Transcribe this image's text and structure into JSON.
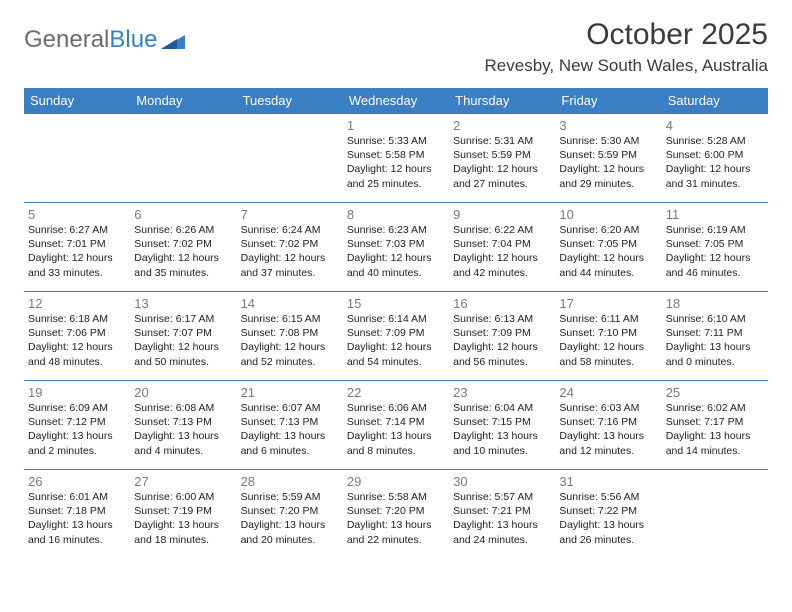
{
  "logo": {
    "part1": "General",
    "part2": "Blue"
  },
  "title": "October 2025",
  "location": "Revesby, New South Wales, Australia",
  "colors": {
    "header_bg": "#3a7fc4",
    "header_text": "#ffffff",
    "border": "#3a7fc4",
    "daynum": "#7a7a7a",
    "body_text": "#222222",
    "logo_gray": "#6c6c6c",
    "logo_blue": "#3a7fc4"
  },
  "days": [
    "Sunday",
    "Monday",
    "Tuesday",
    "Wednesday",
    "Thursday",
    "Friday",
    "Saturday"
  ],
  "weeks": [
    [
      null,
      null,
      null,
      {
        "n": "1",
        "sr": "5:33 AM",
        "ss": "5:58 PM",
        "dl": "12 hours and 25 minutes."
      },
      {
        "n": "2",
        "sr": "5:31 AM",
        "ss": "5:59 PM",
        "dl": "12 hours and 27 minutes."
      },
      {
        "n": "3",
        "sr": "5:30 AM",
        "ss": "5:59 PM",
        "dl": "12 hours and 29 minutes."
      },
      {
        "n": "4",
        "sr": "5:28 AM",
        "ss": "6:00 PM",
        "dl": "12 hours and 31 minutes."
      }
    ],
    [
      {
        "n": "5",
        "sr": "6:27 AM",
        "ss": "7:01 PM",
        "dl": "12 hours and 33 minutes."
      },
      {
        "n": "6",
        "sr": "6:26 AM",
        "ss": "7:02 PM",
        "dl": "12 hours and 35 minutes."
      },
      {
        "n": "7",
        "sr": "6:24 AM",
        "ss": "7:02 PM",
        "dl": "12 hours and 37 minutes."
      },
      {
        "n": "8",
        "sr": "6:23 AM",
        "ss": "7:03 PM",
        "dl": "12 hours and 40 minutes."
      },
      {
        "n": "9",
        "sr": "6:22 AM",
        "ss": "7:04 PM",
        "dl": "12 hours and 42 minutes."
      },
      {
        "n": "10",
        "sr": "6:20 AM",
        "ss": "7:05 PM",
        "dl": "12 hours and 44 minutes."
      },
      {
        "n": "11",
        "sr": "6:19 AM",
        "ss": "7:05 PM",
        "dl": "12 hours and 46 minutes."
      }
    ],
    [
      {
        "n": "12",
        "sr": "6:18 AM",
        "ss": "7:06 PM",
        "dl": "12 hours and 48 minutes."
      },
      {
        "n": "13",
        "sr": "6:17 AM",
        "ss": "7:07 PM",
        "dl": "12 hours and 50 minutes."
      },
      {
        "n": "14",
        "sr": "6:15 AM",
        "ss": "7:08 PM",
        "dl": "12 hours and 52 minutes."
      },
      {
        "n": "15",
        "sr": "6:14 AM",
        "ss": "7:09 PM",
        "dl": "12 hours and 54 minutes."
      },
      {
        "n": "16",
        "sr": "6:13 AM",
        "ss": "7:09 PM",
        "dl": "12 hours and 56 minutes."
      },
      {
        "n": "17",
        "sr": "6:11 AM",
        "ss": "7:10 PM",
        "dl": "12 hours and 58 minutes."
      },
      {
        "n": "18",
        "sr": "6:10 AM",
        "ss": "7:11 PM",
        "dl": "13 hours and 0 minutes."
      }
    ],
    [
      {
        "n": "19",
        "sr": "6:09 AM",
        "ss": "7:12 PM",
        "dl": "13 hours and 2 minutes."
      },
      {
        "n": "20",
        "sr": "6:08 AM",
        "ss": "7:13 PM",
        "dl": "13 hours and 4 minutes."
      },
      {
        "n": "21",
        "sr": "6:07 AM",
        "ss": "7:13 PM",
        "dl": "13 hours and 6 minutes."
      },
      {
        "n": "22",
        "sr": "6:06 AM",
        "ss": "7:14 PM",
        "dl": "13 hours and 8 minutes."
      },
      {
        "n": "23",
        "sr": "6:04 AM",
        "ss": "7:15 PM",
        "dl": "13 hours and 10 minutes."
      },
      {
        "n": "24",
        "sr": "6:03 AM",
        "ss": "7:16 PM",
        "dl": "13 hours and 12 minutes."
      },
      {
        "n": "25",
        "sr": "6:02 AM",
        "ss": "7:17 PM",
        "dl": "13 hours and 14 minutes."
      }
    ],
    [
      {
        "n": "26",
        "sr": "6:01 AM",
        "ss": "7:18 PM",
        "dl": "13 hours and 16 minutes."
      },
      {
        "n": "27",
        "sr": "6:00 AM",
        "ss": "7:19 PM",
        "dl": "13 hours and 18 minutes."
      },
      {
        "n": "28",
        "sr": "5:59 AM",
        "ss": "7:20 PM",
        "dl": "13 hours and 20 minutes."
      },
      {
        "n": "29",
        "sr": "5:58 AM",
        "ss": "7:20 PM",
        "dl": "13 hours and 22 minutes."
      },
      {
        "n": "30",
        "sr": "5:57 AM",
        "ss": "7:21 PM",
        "dl": "13 hours and 24 minutes."
      },
      {
        "n": "31",
        "sr": "5:56 AM",
        "ss": "7:22 PM",
        "dl": "13 hours and 26 minutes."
      },
      null
    ]
  ],
  "labels": {
    "sunrise": "Sunrise:",
    "sunset": "Sunset:",
    "daylight": "Daylight:"
  }
}
